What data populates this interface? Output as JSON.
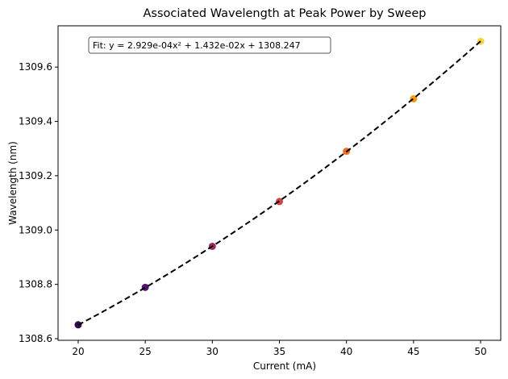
{
  "chart_data": {
    "type": "scatter",
    "title": "Associated Wavelength at Peak Power by Sweep",
    "xlabel": "Current (mA)",
    "ylabel": "Wavelength (nm)",
    "xlim": [
      18.5,
      51.5
    ],
    "ylim": [
      1308.594,
      1309.752
    ],
    "xticks": [
      20,
      25,
      30,
      35,
      40,
      45,
      50
    ],
    "yticks": [
      1308.6,
      1308.8,
      1309.0,
      1309.2,
      1309.4,
      1309.6
    ],
    "ytick_labels": [
      "1308.6",
      "1308.8",
      "1309.0",
      "1309.2",
      "1309.4",
      "1309.6"
    ],
    "grid": false,
    "points": [
      {
        "x": 20,
        "y": 1308.651,
        "color": "#2d0b4d"
      },
      {
        "x": 25,
        "y": 1308.789,
        "color": "#55136e"
      },
      {
        "x": 30,
        "y": 1308.94,
        "color": "#9a2865"
      },
      {
        "x": 35,
        "y": 1309.105,
        "color": "#cf4447"
      },
      {
        "x": 40,
        "y": 1309.29,
        "color": "#ef6e21"
      },
      {
        "x": 45,
        "y": 1309.483,
        "color": "#fa9b0f"
      },
      {
        "x": 50,
        "y": 1309.695,
        "color": "#f8d43d"
      }
    ],
    "fit": {
      "label": "Fit: y = 2.929e-04x² + 1.432e-02x + 1308.247",
      "a": 0.0002929,
      "b": 0.01432,
      "c": 1308.247,
      "x_range": [
        20,
        50
      ],
      "color": "#000000",
      "style": "dashed"
    }
  }
}
